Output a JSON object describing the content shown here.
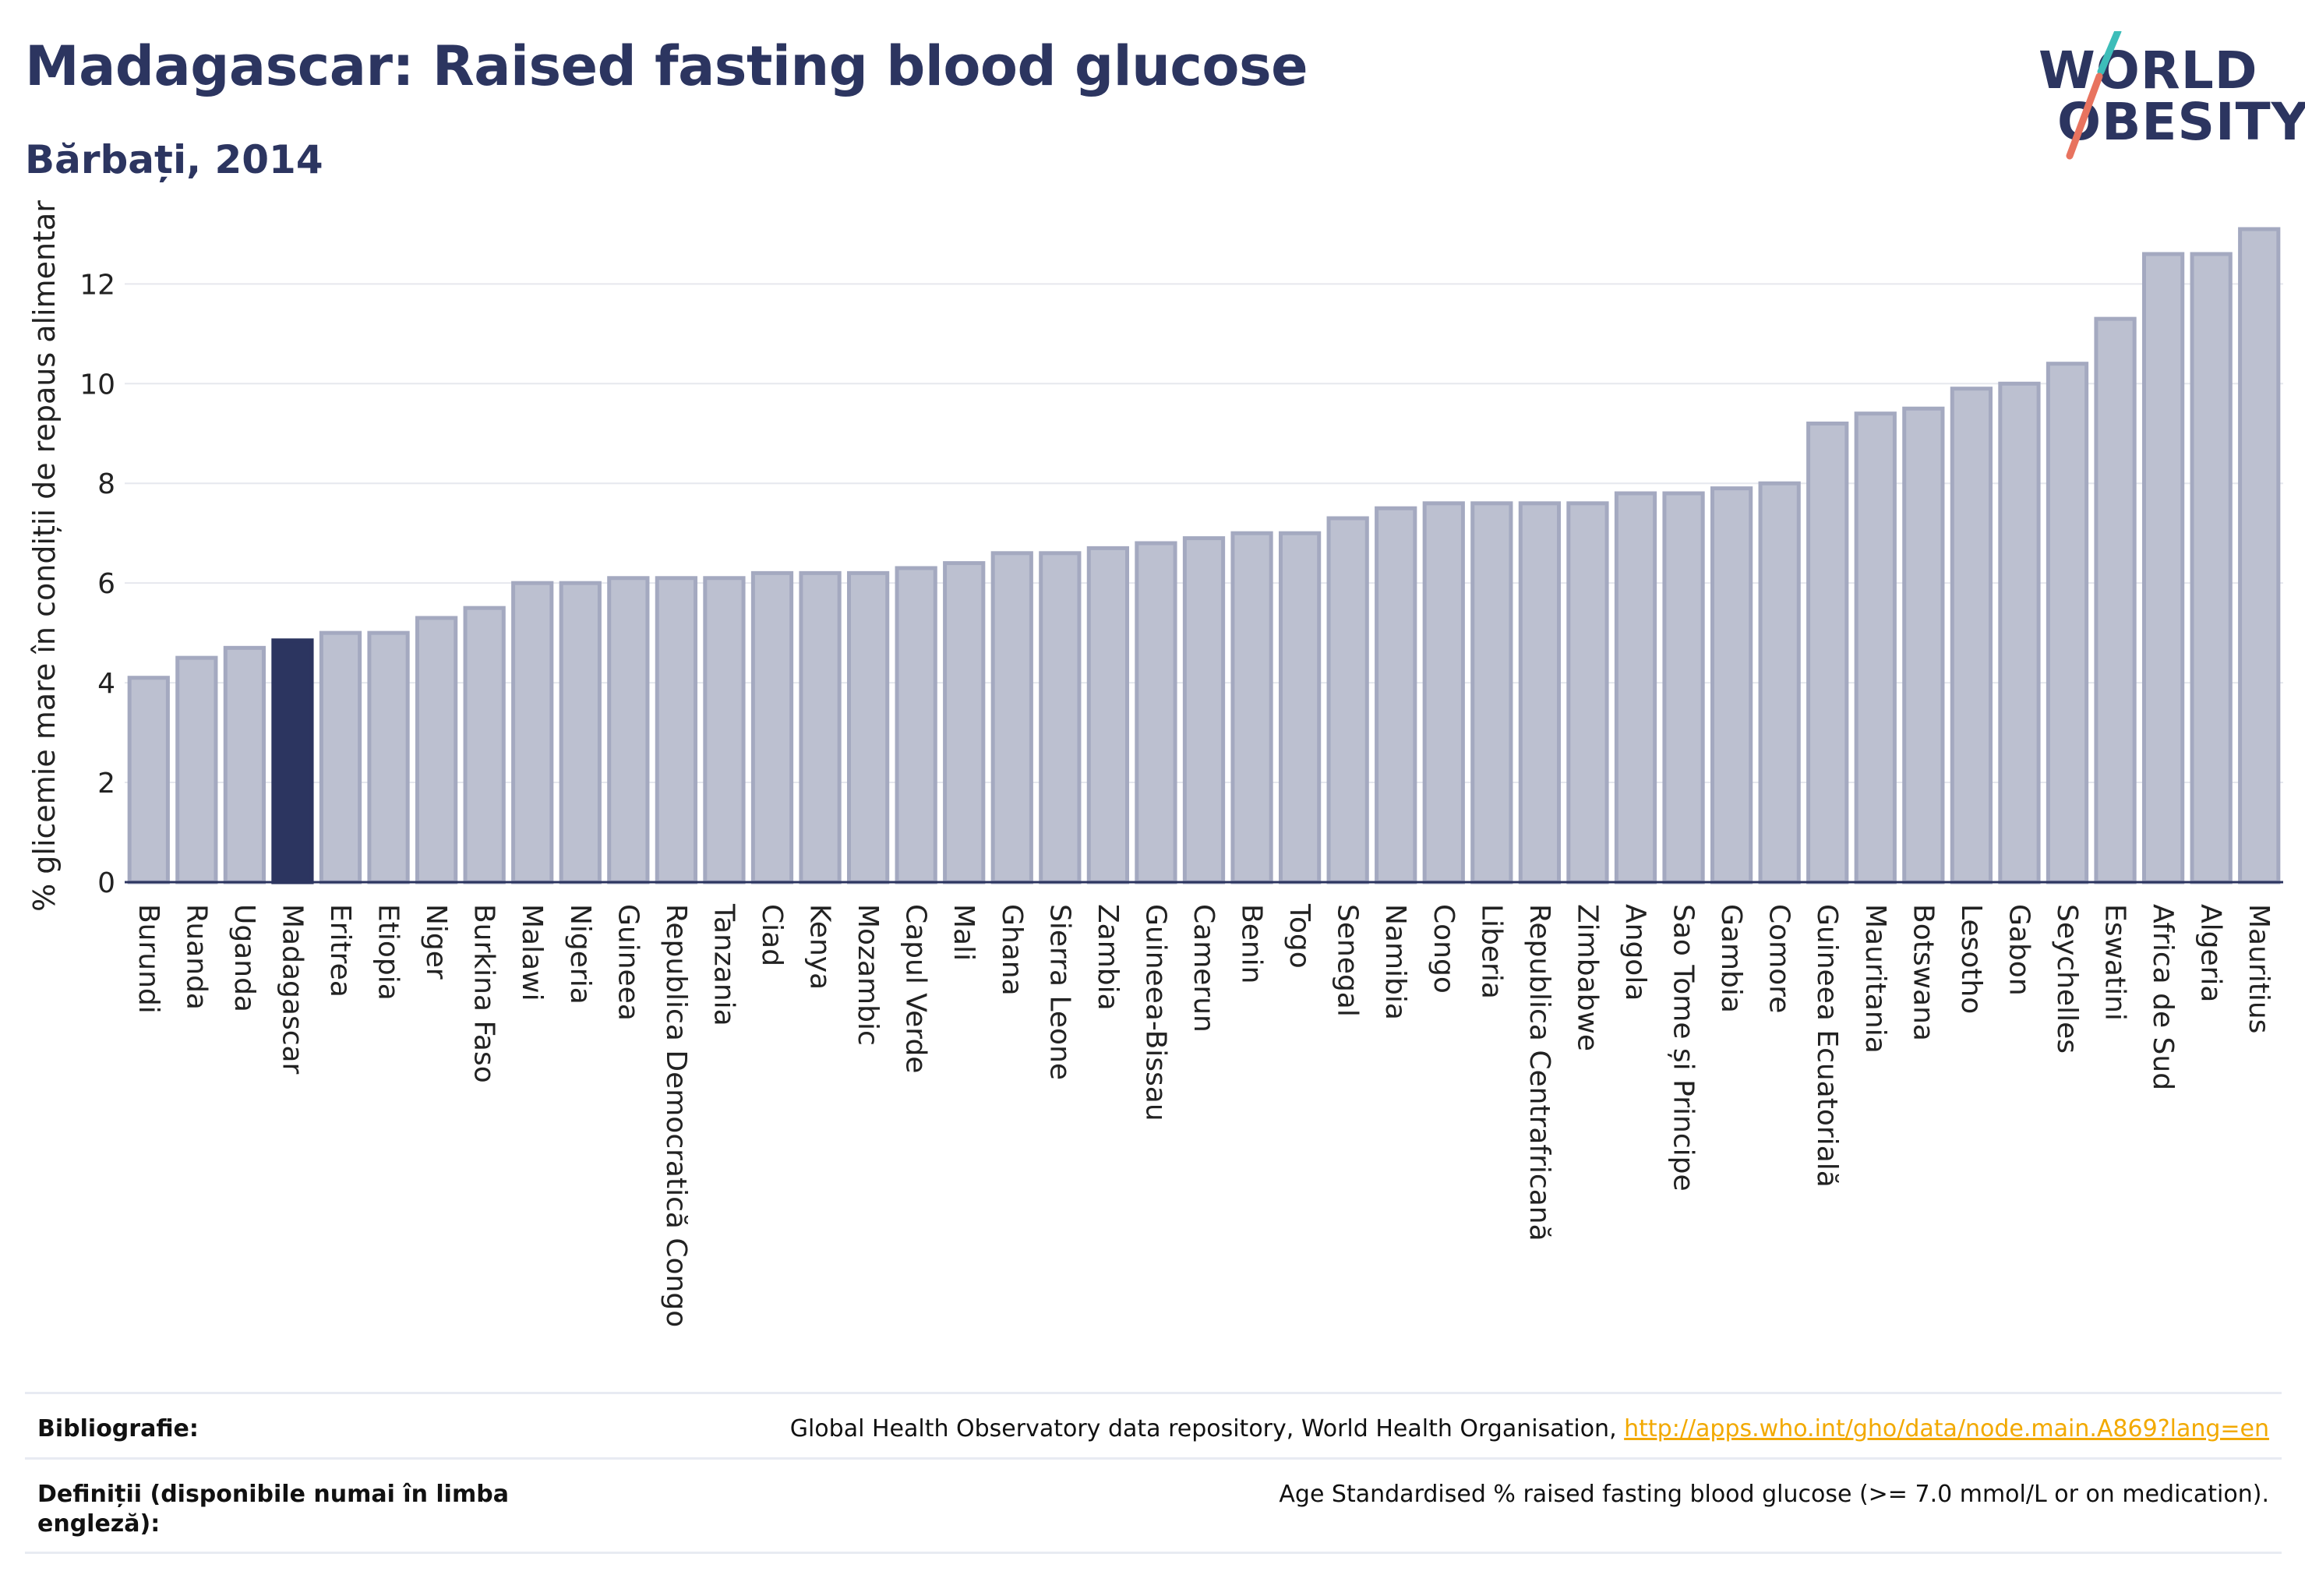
{
  "header": {
    "title": "Madagascar: Raised fasting blood glucose",
    "subtitle": "Bărbați, 2014"
  },
  "logo": {
    "line1": "WORLD",
    "line2": "OBESITY",
    "colors": {
      "text": "#2c3560",
      "slash_top": "#3dbdb9",
      "slash_bottom": "#e8735f"
    }
  },
  "colors": {
    "bar_default_fill": "#bcc0d0",
    "bar_default_stroke": "#a4a9c0",
    "bar_highlight": "#2c3560",
    "grid": "#e6e8ee",
    "axis": "#2c3560",
    "link": "#f2a900"
  },
  "chart_data": {
    "type": "bar",
    "title": "",
    "ylabel": "% glicemie mare în condiții de repaus alimentar",
    "xlabel": "",
    "ylim": [
      0,
      13.6
    ],
    "yticks": [
      0,
      2,
      4,
      6,
      8,
      10,
      12
    ],
    "grid": true,
    "highlight": "Madagascar",
    "categories": [
      "Burundi",
      "Ruanda",
      "Uganda",
      "Madagascar",
      "Eritrea",
      "Etiopia",
      "Niger",
      "Burkina Faso",
      "Malawi",
      "Nigeria",
      "Guineea",
      "Republica Democratică Congo",
      "Tanzania",
      "Ciad",
      "Kenya",
      "Mozambic",
      "Capul Verde",
      "Mali",
      "Ghana",
      "Sierra Leone",
      "Zambia",
      "Guineea-Bissau",
      "Camerun",
      "Benin",
      "Togo",
      "Senegal",
      "Namibia",
      "Congo",
      "Liberia",
      "Republica Centrafricană",
      "Zimbabwe",
      "Angola",
      "Sao Tome și Principe",
      "Gambia",
      "Comore",
      "Guineea Ecuatorială",
      "Mauritania",
      "Botswana",
      "Lesotho",
      "Gabon",
      "Seychelles",
      "Eswatini",
      "Africa de Sud",
      "Algeria",
      "Mauritius"
    ],
    "values": [
      4.1,
      4.5,
      4.7,
      4.85,
      5.0,
      5.0,
      5.3,
      5.5,
      6.0,
      6.0,
      6.1,
      6.1,
      6.1,
      6.2,
      6.2,
      6.2,
      6.3,
      6.4,
      6.6,
      6.6,
      6.7,
      6.8,
      6.9,
      7.0,
      7.0,
      7.3,
      7.5,
      7.6,
      7.6,
      7.6,
      7.6,
      7.8,
      7.8,
      7.9,
      8.0,
      9.2,
      9.4,
      9.5,
      9.9,
      10.0,
      10.4,
      11.3,
      12.6,
      12.6,
      13.1
    ]
  },
  "footer": {
    "bibliography_label": "Bibliografie:",
    "bibliography_text": "Global Health Observatory data repository, World Health Organisation, ",
    "bibliography_link": "http://apps.who.int/gho/data/node.main.A869?lang=en",
    "definitions_label": "Definiții (disponibile numai în limba engleză):",
    "definitions_text": "Age Standardised % raised fasting blood glucose (>= 7.0 mmol/L or on medication)."
  }
}
